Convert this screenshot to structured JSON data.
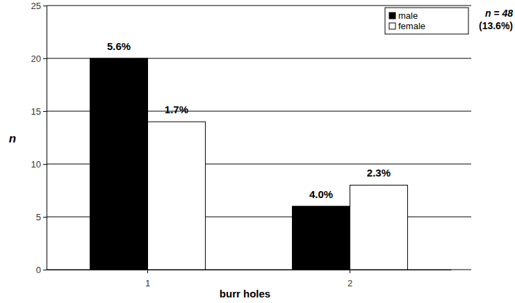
{
  "chart_data": {
    "type": "bar",
    "x_label": "burr holes",
    "y_label": "n",
    "annotations": [
      "n = 48",
      "(13.6%)"
    ],
    "categories": [
      "1",
      "2"
    ],
    "series": [
      {
        "name": "male",
        "color": "#000000",
        "values": [
          20,
          6
        ],
        "labels": [
          "5.6%",
          "4.0%"
        ]
      },
      {
        "name": "female",
        "color": "#ffffff",
        "values": [
          14,
          8
        ],
        "labels": [
          "1.7%",
          "2.3%"
        ]
      }
    ],
    "ylim": [
      0,
      25
    ],
    "yticks": [
      0,
      5,
      10,
      15,
      20,
      25
    ],
    "grid": true,
    "legend": "upper right"
  }
}
